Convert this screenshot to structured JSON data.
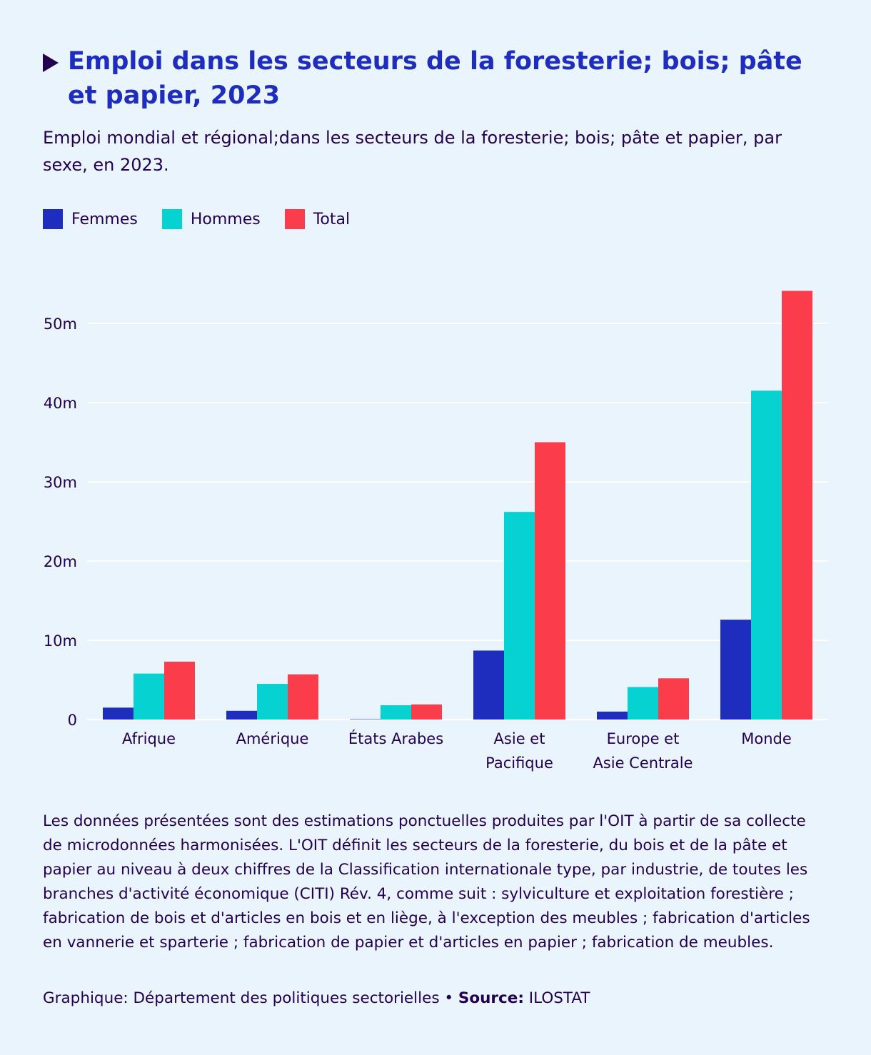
{
  "header": {
    "title": "Emploi dans les secteurs de la foresterie; bois; pâte et papier, 2023",
    "subtitle": "Emploi mondial et régional;dans les secteurs de la foresterie; bois; pâte et papier, par sexe, en 2023."
  },
  "legend": [
    {
      "label": "Femmes",
      "color": "#1e2dbe"
    },
    {
      "label": "Hommes",
      "color": "#06d2d2"
    },
    {
      "label": "Total",
      "color": "#fa3c4b"
    }
  ],
  "chart_data": {
    "type": "bar",
    "title": "Emploi dans les secteurs de la foresterie; bois; pâte et papier, 2023",
    "xlabel": "",
    "ylabel": "",
    "ylim": [
      0,
      55
    ],
    "yticks": [
      0,
      10,
      20,
      30,
      40,
      50
    ],
    "ytick_labels": [
      "0",
      "10m",
      "20m",
      "30m",
      "40m",
      "50m"
    ],
    "categories": [
      [
        "Afrique"
      ],
      [
        "Amérique"
      ],
      [
        "États Arabes"
      ],
      [
        "Asie et",
        "Pacifique"
      ],
      [
        "Europe et",
        "Asie Centrale"
      ],
      [
        "Monde"
      ]
    ],
    "series": [
      {
        "name": "Femmes",
        "color": "#1e2dbe",
        "values": [
          1.5,
          1.1,
          0.05,
          8.7,
          1.0,
          12.6
        ]
      },
      {
        "name": "Hommes",
        "color": "#06d2d2",
        "values": [
          5.8,
          4.5,
          1.8,
          26.2,
          4.1,
          41.5
        ]
      },
      {
        "name": "Total",
        "color": "#fa3c4b",
        "values": [
          7.3,
          5.7,
          1.9,
          35.0,
          5.2,
          54.1
        ]
      }
    ],
    "grid": true
  },
  "footer": {
    "note": "Les données présentées sont des estimations ponctuelles produites par l'OIT à partir de sa collecte de microdonnées harmonisées. L'OIT définit les secteurs de la foresterie, du bois et de la pâte et papier au niveau à deux chiffres de la Classification internationale type, par industrie, de toutes les branches d'activité économique (CITI) Rév. 4, comme suit : sylviculture et exploitation forestière ; fabrication de bois et d'articles en bois et en liège, à l'exception des meubles ; fabrication d'articles en vannerie et sparterie ; fabrication de papier et d'articles en papier ; fabrication de meubles.",
    "credit_prefix": "Graphique: Département des politiques sectorielles • ",
    "source_label": "Source:",
    "source_value": " ILOSTAT"
  }
}
